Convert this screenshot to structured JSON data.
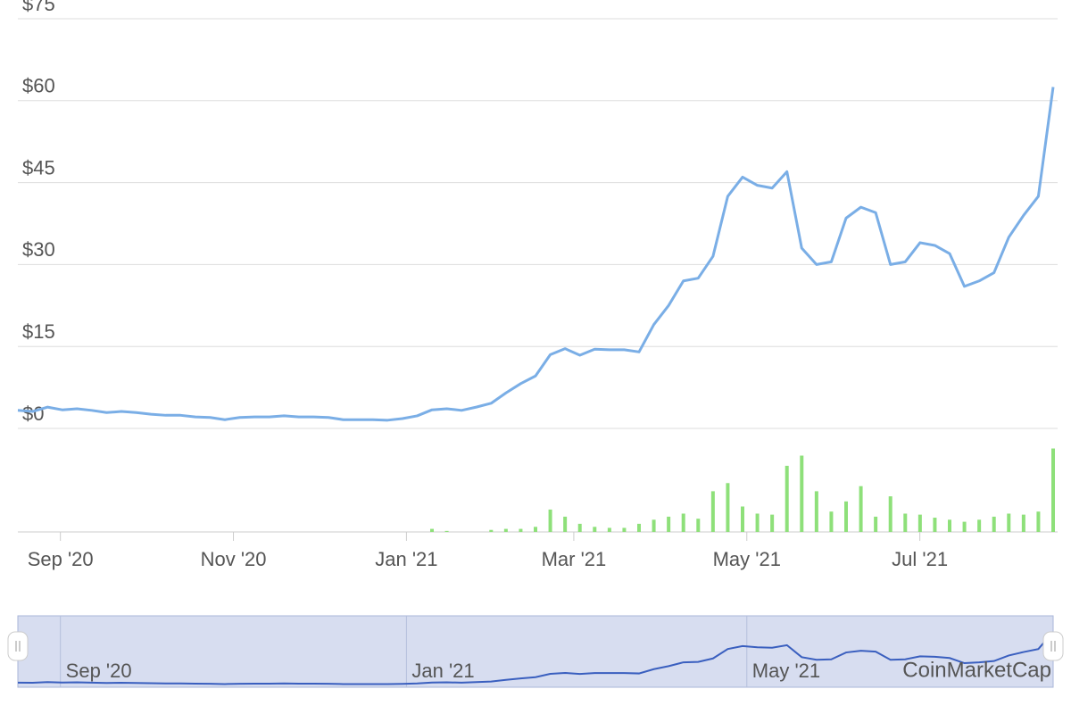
{
  "chart_data": {
    "type": "line",
    "xlim": [
      "2020-08-17",
      "2021-08-17"
    ],
    "xticks": [
      {
        "value": "2020-09",
        "label": "Sep '20"
      },
      {
        "value": "2020-11",
        "label": "Nov '20"
      },
      {
        "value": "2021-01",
        "label": "Jan '21"
      },
      {
        "value": "2021-03",
        "label": "Mar '21"
      },
      {
        "value": "2021-05",
        "label": "May '21"
      },
      {
        "value": "2021-07",
        "label": "Jul '21"
      }
    ],
    "ylim": [
      0,
      75
    ],
    "yticks": [
      {
        "value": 0,
        "label": "$0"
      },
      {
        "value": 15,
        "label": "$15"
      },
      {
        "value": 30,
        "label": "$30"
      },
      {
        "value": 45,
        "label": "$45"
      },
      {
        "value": 60,
        "label": "$60"
      },
      {
        "value": 75,
        "label": "$75"
      }
    ],
    "grid": true,
    "series": [
      {
        "color": "#7aaee6",
        "values": [
          3.3,
          3.1,
          3.9,
          3.4,
          3.6,
          3.3,
          2.9,
          3.1,
          2.9,
          2.6,
          2.4,
          2.4,
          2.1,
          2.0,
          1.6,
          2.0,
          2.1,
          2.1,
          2.3,
          2.1,
          2.1,
          2.0,
          1.6,
          1.6,
          1.6,
          1.5,
          1.8,
          2.3,
          3.4,
          3.6,
          3.3,
          3.9,
          4.6,
          6.5,
          8.2,
          9.6,
          13.5,
          14.6,
          13.4,
          14.5,
          14.4,
          14.4,
          14.0,
          19.0,
          22.5,
          27.0,
          27.5,
          31.5,
          42.5,
          46.0,
          44.5,
          44.0,
          47.0,
          33.0,
          30.0,
          30.5,
          38.5,
          40.5,
          39.5,
          30.0,
          30.5,
          34.0,
          33.5,
          32.0,
          26.0,
          27.0,
          28.5,
          35.0,
          39.0,
          42.5,
          62.5
        ]
      },
      {
        "type": "bar",
        "color": "#8ee07a",
        "ylim": [
          0,
          100
        ],
        "values": [
          0,
          0,
          0,
          0,
          0,
          0,
          0,
          0,
          0,
          0,
          0,
          0,
          0,
          0,
          0,
          0,
          0,
          0,
          0,
          0,
          0,
          0,
          0,
          0,
          0,
          0,
          0,
          0,
          3,
          1,
          0,
          0,
          2,
          3,
          3,
          5,
          22,
          15,
          8,
          5,
          4,
          4,
          8,
          12,
          15,
          18,
          13,
          40,
          48,
          25,
          18,
          17,
          65,
          75,
          40,
          20,
          30,
          45,
          15,
          35,
          18,
          17,
          14,
          12,
          10,
          12,
          15,
          18,
          17,
          20,
          82
        ]
      }
    ],
    "navigator": {
      "xticks": [
        {
          "value": "2020-09",
          "label": "Sep '20"
        },
        {
          "value": "2021-01",
          "label": "Jan '21"
        },
        {
          "value": "2021-05",
          "label": "May '21"
        }
      ],
      "color": "#3a5fbf"
    },
    "watermark": "CoinMarketCap"
  }
}
